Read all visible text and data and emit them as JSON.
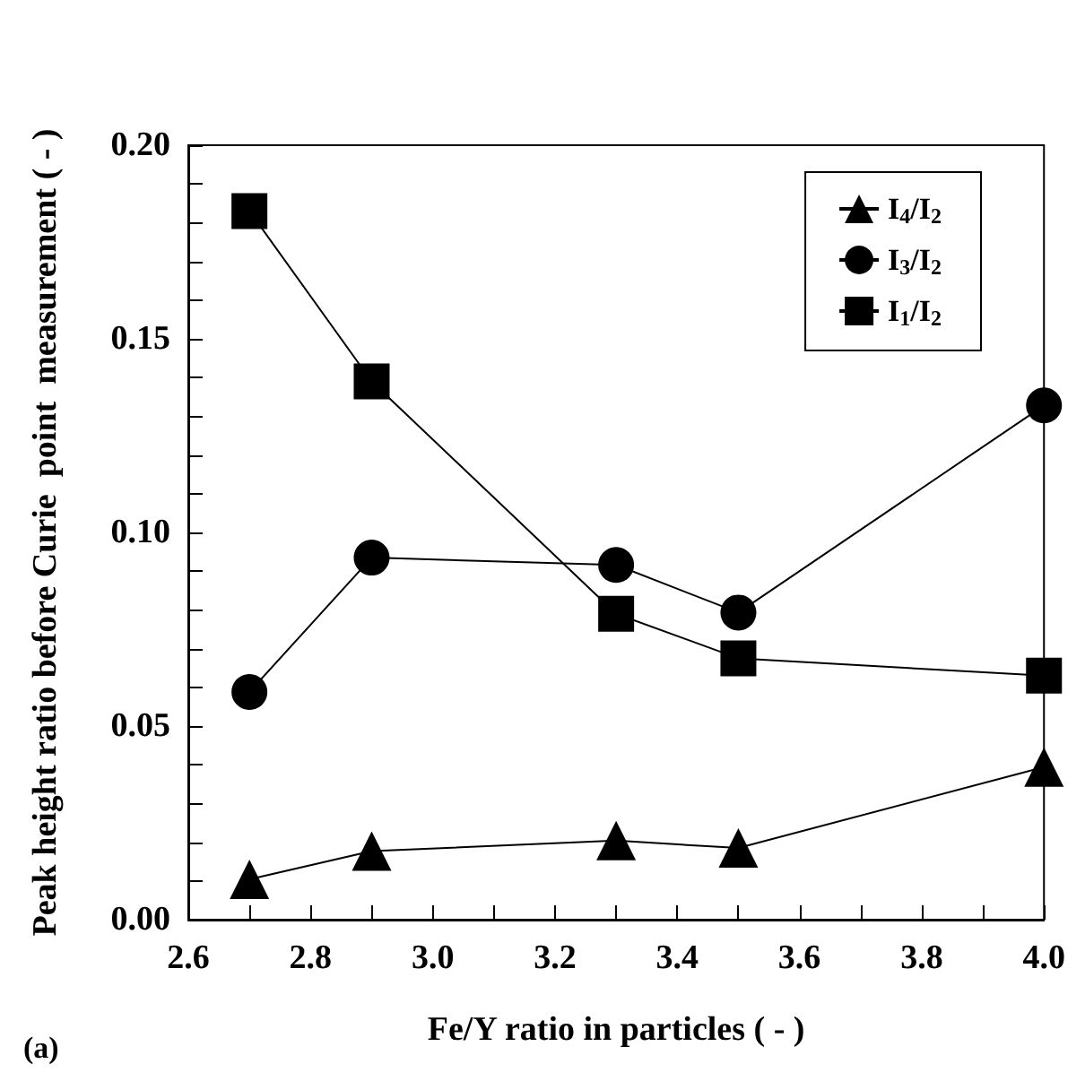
{
  "chart_data": {
    "type": "line",
    "xlabel": "Fe/Y ratio in particles ( - )",
    "ylabel": "Peak height ratio before Curie  point  measurement ( - )",
    "x": [
      2.7,
      2.9,
      3.3,
      3.5,
      4.0
    ],
    "series": [
      {
        "name": "I$_{4}$/I$_{2}$",
        "color": "#000000",
        "marker": "triangle",
        "values": [
          0.0104,
          0.0177,
          0.0204,
          0.0185,
          0.0394
        ]
      },
      {
        "name": "I$_{3}$/I$_{2}$",
        "color": "#000000",
        "marker": "circle",
        "values": [
          0.0588,
          0.0935,
          0.0916,
          0.0793,
          0.1328
        ]
      },
      {
        "name": "I$_{1}$/I$_{2}$",
        "color": "#000000",
        "marker": "square",
        "values": [
          0.183,
          0.139,
          0.079,
          0.0675,
          0.063
        ]
      }
    ],
    "xlim": [
      2.6,
      4.0
    ],
    "xticks": [
      2.6,
      {
        "value": 2.7,
        "label": null
      },
      2.8,
      {
        "value": 2.9,
        "label": null
      },
      "3.0",
      {
        "value": 3.1,
        "label": null
      },
      3.2,
      {
        "value": 3.3,
        "label": null
      },
      3.4,
      {
        "value": 3.5,
        "label": null
      },
      3.6,
      {
        "value": 3.7,
        "label": null
      },
      3.8,
      {
        "value": 3.9,
        "label": null
      },
      "4.0"
    ],
    "ylim": [
      0,
      0.2
    ],
    "yticks": [
      {
        "value": 0,
        "label": "0.00"
      },
      {
        "value": 0.01,
        "label": null
      },
      {
        "value": 0.02,
        "label": null
      },
      {
        "value": 0.03,
        "label": null
      },
      {
        "value": 0.04,
        "label": null
      },
      0.05,
      {
        "value": 0.06,
        "label": null
      },
      {
        "value": 0.07,
        "label": null
      },
      {
        "value": 0.08,
        "label": null
      },
      {
        "value": 0.09,
        "label": null
      },
      {
        "value": 0.1,
        "label": "0.10"
      },
      {
        "value": 0.11,
        "label": null
      },
      {
        "value": 0.12,
        "label": null
      },
      {
        "value": 0.13,
        "label": null
      },
      {
        "value": 0.14,
        "label": null
      },
      0.15,
      {
        "value": 0.16,
        "label": null
      },
      {
        "value": 0.17,
        "label": null
      },
      {
        "value": 0.18,
        "label": null
      },
      {
        "value": 0.19,
        "label": null
      },
      {
        "value": 0.2,
        "label": "0.20"
      }
    ],
    "grid": false,
    "legend": "top right",
    "line_style": "solid",
    "annotations": [
      "(a)"
    ]
  }
}
